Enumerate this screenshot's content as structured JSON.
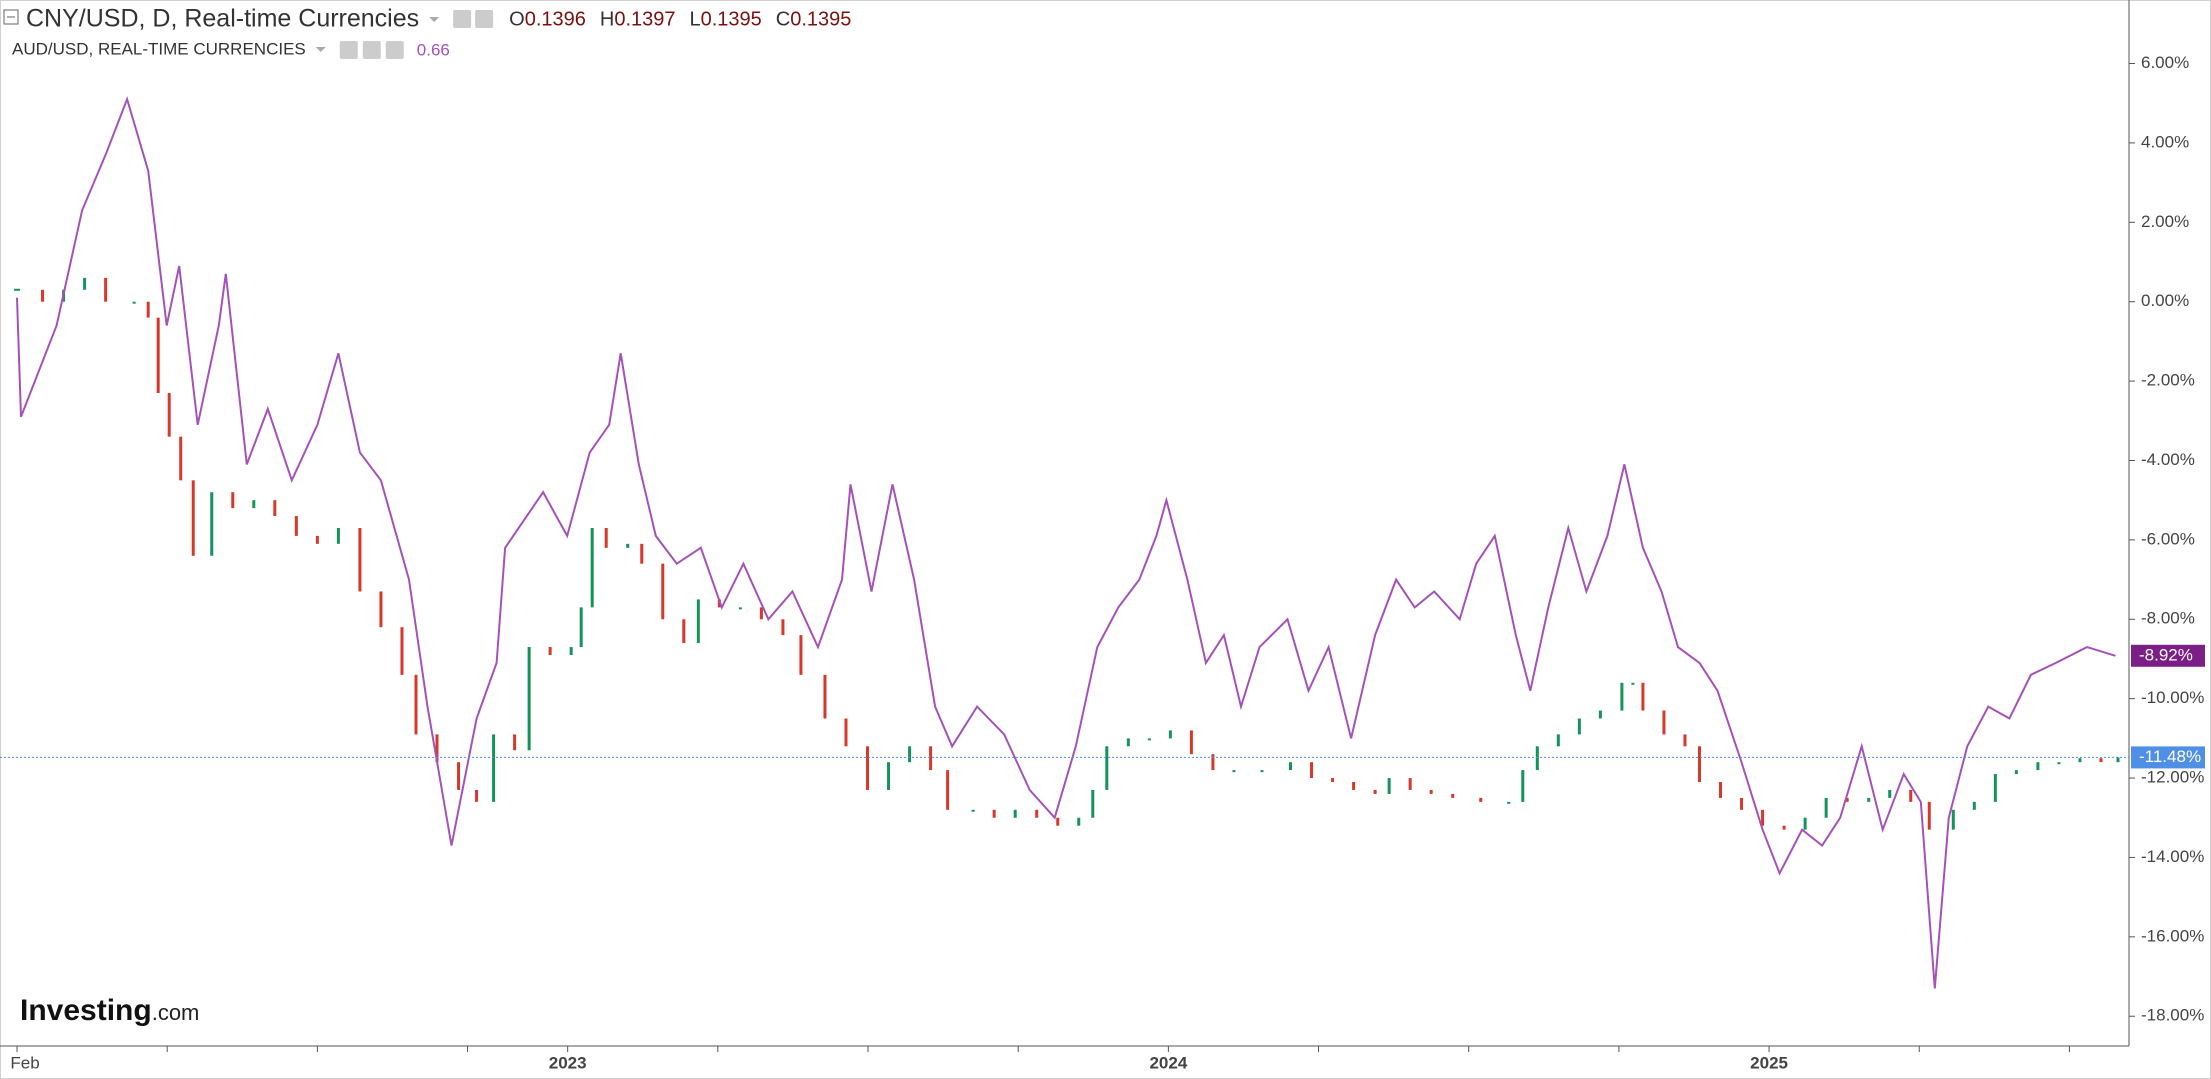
{
  "chart_data": {
    "type": "line",
    "series": [
      {
        "name": "CNY/USD, D, Real-time Currencies",
        "style": "bars",
        "up_color": "#14935a",
        "down_color": "#d8382a",
        "ohlc": [
          {
            "label": "O",
            "value": 0.1396
          },
          {
            "label": "H",
            "value": 0.1397
          },
          {
            "label": "L",
            "value": 0.1395
          },
          {
            "label": "C",
            "value": 0.1395
          }
        ],
        "last_label": "-11.48%",
        "label_color": "#4f8fe6",
        "x": [
          0,
          0.51,
          0.93,
          1.35,
          1.77,
          2.34,
          2.62,
          2.82,
          3.04,
          3.27,
          3.52,
          3.89,
          4.31,
          4.73,
          5.15,
          5.58,
          6.0,
          6.42,
          6.85,
          7.27,
          7.69,
          7.97,
          8.39,
          8.82,
          9.18,
          9.52,
          9.94,
          10.23,
          10.65,
          11.07,
          11.27,
          11.49,
          11.77,
          12.2,
          12.48,
          12.9,
          13.32,
          13.61,
          14.03,
          14.45,
          14.87,
          15.3,
          15.66,
          16.14,
          16.56,
          16.99,
          17.41,
          17.83,
          18.25,
          18.59,
          19.1,
          19.52,
          19.94,
          20.37,
          20.79,
          21.21,
          21.49,
          21.77,
          22.2,
          22.62,
          23.04,
          23.46,
          23.89,
          24.31,
          24.87,
          25.44,
          25.86,
          26.28,
          26.7,
          27.13,
          27.41,
          27.83,
          28.25,
          28.68,
          29.24,
          29.8,
          30.08,
          30.37,
          30.79,
          31.21,
          31.63,
          32.06,
          32.28,
          32.48,
          32.9,
          33.32,
          33.61,
          34.03,
          34.45,
          34.87,
          35.3,
          35.72,
          36.14,
          36.56,
          36.99,
          37.41,
          37.83,
          38.2,
          38.68,
          39.1,
          39.52,
          39.94,
          40.37,
          40.79,
          41.21,
          41.63,
          41.97
        ],
        "values": [
          0.3,
          0,
          0.3,
          0.6,
          0,
          0,
          -0.4,
          -2.3,
          -3.4,
          -4.5,
          -6.4,
          -4.8,
          -5.2,
          -5.0,
          -5.4,
          -5.9,
          -6.1,
          -5.7,
          -7.3,
          -8.2,
          -9.4,
          -10.9,
          -11.6,
          -12.3,
          -12.6,
          -10.9,
          -11.3,
          -8.7,
          -8.9,
          -8.7,
          -7.7,
          -5.7,
          -6.2,
          -6.1,
          -6.6,
          -8.0,
          -8.6,
          -7.5,
          -7.7,
          -7.7,
          -8.0,
          -8.4,
          -9.4,
          -10.5,
          -11.2,
          -12.3,
          -11.6,
          -11.2,
          -11.8,
          -12.8,
          -12.8,
          -13.0,
          -12.8,
          -13.0,
          -13.2,
          -13.0,
          -12.3,
          -11.2,
          -11.0,
          -11.0,
          -10.8,
          -11.4,
          -11.8,
          -11.8,
          -11.8,
          -11.6,
          -12.0,
          -12.1,
          -12.3,
          -12.4,
          -12.0,
          -12.3,
          -12.4,
          -12.5,
          -12.6,
          -12.6,
          -11.8,
          -11.2,
          -10.9,
          -10.5,
          -10.3,
          -9.6,
          -9.6,
          -10.3,
          -10.9,
          -11.2,
          -12.1,
          -12.5,
          -12.8,
          -13.2,
          -13.3,
          -13.0,
          -12.5,
          -12.6,
          -12.5,
          -12.3,
          -12.6,
          -13.3,
          -12.8,
          -12.6,
          -11.9,
          -11.8,
          -11.6,
          -11.6,
          -11.5,
          -11.6,
          -11.48
        ]
      },
      {
        "name": "AUD/USD, REAL-TIME CURRENCIES",
        "style": "line",
        "color": "#a552b8",
        "legend_value": 0.66,
        "last_label": "-8.92%",
        "label_color": "#7b1f86",
        "x": [
          0,
          0.08,
          0.79,
          1.3,
          1.77,
          2.2,
          2.62,
          2.99,
          3.24,
          3.61,
          4.03,
          4.17,
          4.59,
          5.01,
          5.49,
          6.0,
          6.42,
          6.85,
          7.27,
          7.83,
          8.2,
          8.68,
          9.18,
          9.58,
          9.75,
          10.51,
          10.99,
          11.44,
          11.83,
          12.06,
          12.42,
          12.76,
          13.18,
          13.66,
          14.08,
          14.51,
          15.01,
          15.49,
          16.0,
          16.48,
          16.65,
          17.07,
          17.49,
          17.92,
          18.34,
          18.68,
          19.18,
          19.72,
          20.23,
          20.73,
          21.15,
          21.58,
          22.0,
          22.42,
          22.76,
          22.96,
          23.38,
          23.75,
          24.11,
          24.45,
          24.82,
          25.38,
          25.8,
          26.2,
          26.65,
          27.13,
          27.55,
          27.92,
          28.31,
          28.82,
          29.15,
          29.52,
          29.94,
          30.23,
          30.59,
          30.99,
          31.35,
          31.77,
          32.11,
          32.48,
          32.85,
          33.18,
          33.61,
          33.97,
          34.45,
          34.87,
          35.21,
          35.66,
          36.06,
          36.42,
          36.85,
          37.27,
          37.69,
          38.03,
          38.31,
          38.59,
          38.96,
          39.38,
          39.8,
          40.23,
          40.73,
          41.35,
          41.92
        ],
        "values": [
          0.1,
          -2.9,
          -0.6,
          2.3,
          3.7,
          5.1,
          3.3,
          -0.6,
          0.9,
          -3.1,
          -0.6,
          0.7,
          -4.1,
          -2.7,
          -4.5,
          -3.1,
          -1.3,
          -3.8,
          -4.5,
          -7.0,
          -10.2,
          -13.7,
          -10.5,
          -9.1,
          -6.2,
          -4.8,
          -5.9,
          -3.8,
          -3.1,
          -1.3,
          -4.1,
          -5.9,
          -6.6,
          -6.2,
          -7.7,
          -6.6,
          -8.0,
          -7.3,
          -8.7,
          -7.0,
          -4.6,
          -7.3,
          -4.6,
          -7.0,
          -10.2,
          -11.2,
          -10.2,
          -10.9,
          -12.3,
          -13.0,
          -11.2,
          -8.7,
          -7.7,
          -7.0,
          -5.9,
          -5.0,
          -7.0,
          -9.1,
          -8.4,
          -10.2,
          -8.7,
          -8.0,
          -9.8,
          -8.7,
          -11.0,
          -8.4,
          -7.0,
          -7.7,
          -7.3,
          -8.0,
          -6.6,
          -5.9,
          -8.4,
          -9.8,
          -7.7,
          -5.7,
          -7.3,
          -5.9,
          -4.1,
          -6.2,
          -7.3,
          -8.7,
          -9.1,
          -9.8,
          -11.6,
          -13.3,
          -14.4,
          -13.3,
          -13.7,
          -13.0,
          -11.2,
          -13.3,
          -11.9,
          -12.6,
          -17.3,
          -13.0,
          -11.2,
          -10.2,
          -10.5,
          -9.4,
          -9.1,
          -8.7,
          -8.92
        ]
      }
    ],
    "xlim": [
      -0.34,
      42.19
    ],
    "xticks": [
      {
        "value": 0,
        "label": "Feb"
      },
      {
        "value": 11,
        "label": "2023"
      },
      {
        "value": 23,
        "label": "2024"
      },
      {
        "value": 35,
        "label": "2025"
      }
    ],
    "xminor_ticks": [
      3,
      6,
      9,
      14,
      17,
      20,
      26,
      29,
      32,
      38,
      41
    ],
    "ylim": [
      -18.75,
      7.6
    ],
    "yticks": [
      {
        "value": 6,
        "label": "6.00%"
      },
      {
        "value": 4,
        "label": "4.00%"
      },
      {
        "value": 2,
        "label": "2.00%"
      },
      {
        "value": 0,
        "label": "0.00%"
      },
      {
        "value": -2,
        "label": "-2.00%"
      },
      {
        "value": -4,
        "label": "-4.00%"
      },
      {
        "value": -6,
        "label": "-6.00%"
      },
      {
        "value": -8,
        "label": "-8.00%"
      },
      {
        "value": -10,
        "label": "-10.00%"
      },
      {
        "value": -12,
        "label": "-12.00%"
      },
      {
        "value": -14,
        "label": "-14.00%"
      },
      {
        "value": -16,
        "label": "-16.00%"
      },
      {
        "value": -18,
        "label": "-18.00%"
      }
    ],
    "logo": {
      "brand": "Investing",
      "suffix": ".com"
    }
  }
}
